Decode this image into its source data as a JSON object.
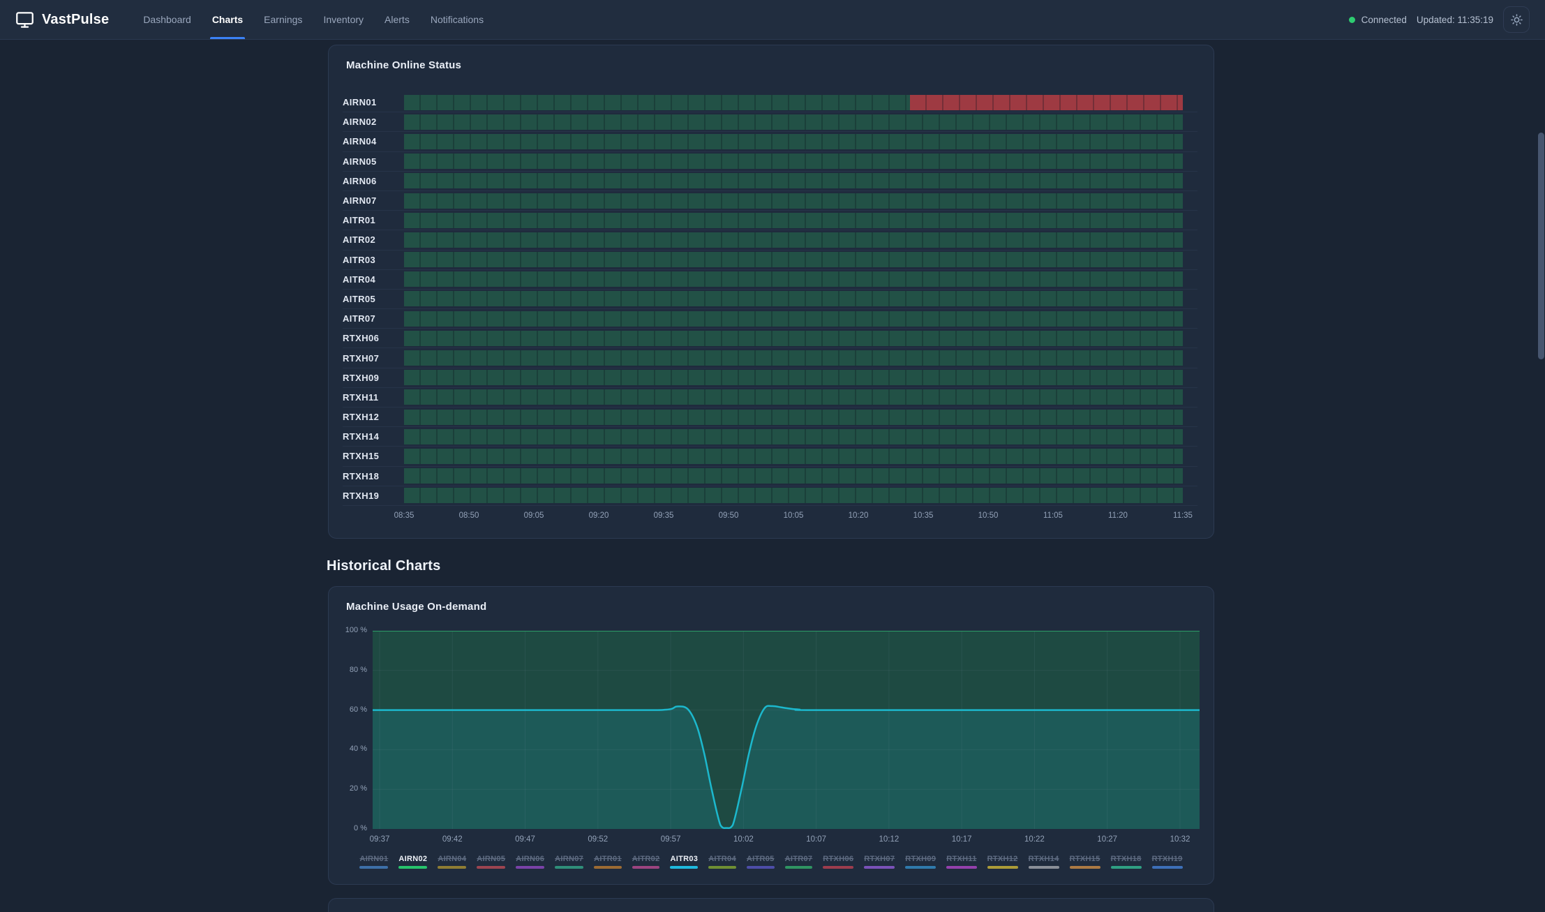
{
  "navbar": {
    "brand": "VastPulse",
    "items": [
      {
        "label": "Dashboard",
        "active": false
      },
      {
        "label": "Charts",
        "active": true
      },
      {
        "label": "Earnings",
        "active": false
      },
      {
        "label": "Inventory",
        "active": false
      },
      {
        "label": "Alerts",
        "active": false
      },
      {
        "label": "Notifications",
        "active": false
      }
    ],
    "connection_label": "Connected",
    "updated_label": "Updated: 11:35:19",
    "theme_icon": "sun-icon",
    "colors": {
      "connected_dot": "#2ecc71",
      "active_tab_underline": "#3b82f6"
    }
  },
  "status_chart": {
    "title": "Machine Online Status",
    "x_ticks": [
      "08:35",
      "08:50",
      "09:05",
      "09:20",
      "09:35",
      "09:50",
      "10:05",
      "10:20",
      "10:35",
      "10:50",
      "11:05",
      "11:20",
      "11:35"
    ],
    "colors": {
      "online": "#225146",
      "offline": "#9e3a42"
    },
    "machines": [
      {
        "name": "AIRN01",
        "segments": [
          {
            "status": "online",
            "pct": 65
          },
          {
            "status": "offline",
            "pct": 35
          }
        ]
      },
      {
        "name": "AIRN02",
        "segments": [
          {
            "status": "online",
            "pct": 100
          }
        ]
      },
      {
        "name": "AIRN04",
        "segments": [
          {
            "status": "online",
            "pct": 100
          }
        ]
      },
      {
        "name": "AIRN05",
        "segments": [
          {
            "status": "online",
            "pct": 100
          }
        ]
      },
      {
        "name": "AIRN06",
        "segments": [
          {
            "status": "online",
            "pct": 100
          }
        ]
      },
      {
        "name": "AIRN07",
        "segments": [
          {
            "status": "online",
            "pct": 100
          }
        ]
      },
      {
        "name": "AITR01",
        "segments": [
          {
            "status": "online",
            "pct": 100
          }
        ]
      },
      {
        "name": "AITR02",
        "segments": [
          {
            "status": "online",
            "pct": 100
          }
        ]
      },
      {
        "name": "AITR03",
        "segments": [
          {
            "status": "online",
            "pct": 100
          }
        ]
      },
      {
        "name": "AITR04",
        "segments": [
          {
            "status": "online",
            "pct": 100
          }
        ]
      },
      {
        "name": "AITR05",
        "segments": [
          {
            "status": "online",
            "pct": 100
          }
        ]
      },
      {
        "name": "AITR07",
        "segments": [
          {
            "status": "online",
            "pct": 100
          }
        ]
      },
      {
        "name": "RTXH06",
        "segments": [
          {
            "status": "online",
            "pct": 100
          }
        ]
      },
      {
        "name": "RTXH07",
        "segments": [
          {
            "status": "online",
            "pct": 100
          }
        ]
      },
      {
        "name": "RTXH09",
        "segments": [
          {
            "status": "online",
            "pct": 100
          }
        ]
      },
      {
        "name": "RTXH11",
        "segments": [
          {
            "status": "online",
            "pct": 100
          }
        ]
      },
      {
        "name": "RTXH12",
        "segments": [
          {
            "status": "online",
            "pct": 100
          }
        ]
      },
      {
        "name": "RTXH14",
        "segments": [
          {
            "status": "online",
            "pct": 100
          }
        ]
      },
      {
        "name": "RTXH15",
        "segments": [
          {
            "status": "online",
            "pct": 100
          }
        ]
      },
      {
        "name": "RTXH18",
        "segments": [
          {
            "status": "online",
            "pct": 100
          }
        ]
      },
      {
        "name": "RTXH19",
        "segments": [
          {
            "status": "online",
            "pct": 100
          }
        ]
      }
    ]
  },
  "historical": {
    "heading": "Historical Charts",
    "usage": {
      "title": "Machine Usage On-demand",
      "y_ticks": [
        "100 %",
        "80 %",
        "60 %",
        "40 %",
        "20 %",
        "0 %"
      ],
      "x_ticks": [
        "09:37",
        "09:42",
        "09:47",
        "09:52",
        "09:57",
        "10:02",
        "10:07",
        "10:12",
        "10:17",
        "10:22",
        "10:27",
        "10:32"
      ],
      "chart_data": {
        "type": "line",
        "xlabel": "",
        "ylabel": "%",
        "ylim": [
          0,
          100
        ],
        "x_ticks": [
          "09:37",
          "09:42",
          "09:47",
          "09:52",
          "09:57",
          "10:02",
          "10:07",
          "10:12",
          "10:17",
          "10:22",
          "10:27",
          "10:32"
        ],
        "grid": true,
        "legend_position": "bottom",
        "series": [
          {
            "name": "AIRN02",
            "line_color": "#2e9d68",
            "fill_color": "#1e4a42",
            "points": [
              [
                0,
                100
              ],
              [
                1,
                100
              ]
            ]
          },
          {
            "name": "AITR03",
            "line_color": "#1cb8cd",
            "fill_color": "#1d5a58",
            "points": [
              [
                0,
                60
              ],
              [
                0.3,
                60
              ],
              [
                0.355,
                60.2
              ],
              [
                0.368,
                61.8
              ],
              [
                0.381,
                60.5
              ],
              [
                0.392,
                52
              ],
              [
                0.401,
                38
              ],
              [
                0.41,
                20
              ],
              [
                0.4205,
                2
              ],
              [
                0.428,
                0.5
              ],
              [
                0.4355,
                2
              ],
              [
                0.446,
                20
              ],
              [
                0.455,
                38
              ],
              [
                0.464,
                52
              ],
              [
                0.474,
                61
              ],
              [
                0.483,
                62
              ],
              [
                0.497,
                61.2
              ],
              [
                0.515,
                60.3
              ],
              [
                0.56,
                60
              ],
              [
                1,
                60
              ]
            ]
          }
        ]
      },
      "legend": [
        {
          "label": "AIRN01",
          "color": "#3d6fa8",
          "active": false
        },
        {
          "label": "AIRN02",
          "color": "#27c46c",
          "active": true
        },
        {
          "label": "AIRN04",
          "color": "#8f7d33",
          "active": false
        },
        {
          "label": "AIRN05",
          "color": "#9c4450",
          "active": false
        },
        {
          "label": "AIRN06",
          "color": "#7a42a8",
          "active": false
        },
        {
          "label": "AIRN07",
          "color": "#2f8f7a",
          "active": false
        },
        {
          "label": "AITR01",
          "color": "#9c6b33",
          "active": false
        },
        {
          "label": "AITR02",
          "color": "#9c4480",
          "active": false
        },
        {
          "label": "AITR03",
          "color": "#1fb9dd",
          "active": true
        },
        {
          "label": "AITR04",
          "color": "#6f8f33",
          "active": false
        },
        {
          "label": "AITR05",
          "color": "#4d4da8",
          "active": false
        },
        {
          "label": "AITR07",
          "color": "#2f9462",
          "active": false
        },
        {
          "label": "RTXH06",
          "color": "#9c3c4d",
          "active": false
        },
        {
          "label": "RTXH07",
          "color": "#7a52b8",
          "active": false
        },
        {
          "label": "RTXH09",
          "color": "#2f7aac",
          "active": false
        },
        {
          "label": "RTXH11",
          "color": "#9440ac",
          "active": false
        },
        {
          "label": "RTXH12",
          "color": "#ac9c38",
          "active": false
        },
        {
          "label": "RTXH14",
          "color": "#8a8f98",
          "active": false
        },
        {
          "label": "RTXH15",
          "color": "#ac7a44",
          "active": false
        },
        {
          "label": "RTXH18",
          "color": "#2fa083",
          "active": false
        },
        {
          "label": "RTXH19",
          "color": "#3d6fb8",
          "active": false
        }
      ]
    }
  }
}
